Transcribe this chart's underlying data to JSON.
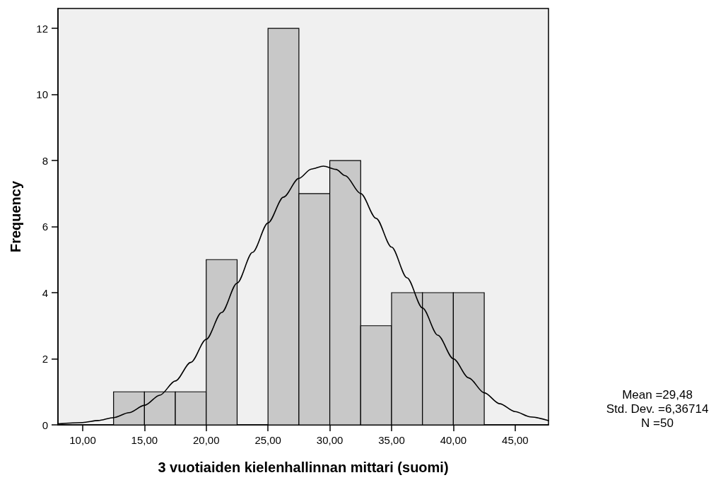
{
  "chart_data": {
    "type": "histogram",
    "xlabel": "3 vuotiaiden kielenhallinnan mittari (suomi)",
    "ylabel": "Frequency",
    "bins": [
      12.5,
      15,
      17.5,
      20,
      22.5,
      25,
      27.5,
      30,
      32.5,
      35,
      37.5,
      40,
      42.5
    ],
    "values": [
      1,
      1,
      1,
      5,
      0,
      12,
      7,
      8,
      3,
      4,
      4,
      4
    ],
    "color": "#c8c8c8",
    "xlim": [
      8.0,
      47.7
    ],
    "xticks": [
      {
        "value": 10,
        "label": "10,00"
      },
      {
        "value": 15,
        "label": "15,00"
      },
      {
        "value": 20,
        "label": "20,00"
      },
      {
        "value": 25,
        "label": "25,00"
      },
      {
        "value": 30,
        "label": "30,00"
      },
      {
        "value": 35,
        "label": "35,00"
      },
      {
        "value": 40,
        "label": "40,00"
      },
      {
        "value": 45,
        "label": "45,00"
      }
    ],
    "ylim": [
      0,
      12.6
    ],
    "yticks": [
      0,
      2,
      4,
      6,
      8,
      10,
      12
    ],
    "grid": false,
    "series": [
      {
        "type": "line",
        "color": "#000000",
        "marker": "none",
        "x": [
          8.0,
          10,
          11.25,
          12.5,
          13.75,
          15,
          16.25,
          17.5,
          18.75,
          20,
          21.25,
          22.5,
          23.75,
          25,
          26.25,
          27.5,
          28.5,
          29.48,
          30.5,
          31.25,
          32.5,
          33.75,
          35,
          36.25,
          37.5,
          38.75,
          40,
          41.25,
          42.5,
          43.75,
          45,
          46.25,
          47.7
        ],
        "values": [
          0.03,
          0.07,
          0.13,
          0.22,
          0.37,
          0.59,
          0.9,
          1.33,
          1.89,
          2.59,
          3.4,
          4.29,
          5.22,
          6.11,
          6.89,
          7.46,
          7.74,
          7.83,
          7.73,
          7.54,
          7.0,
          6.25,
          5.38,
          4.45,
          3.54,
          2.71,
          2.0,
          1.42,
          0.97,
          0.64,
          0.4,
          0.24,
          0.13
        ]
      }
    ],
    "annotations": [
      "Mean =29,48",
      "Std. Dev. =6,36714",
      "N =50"
    ]
  }
}
